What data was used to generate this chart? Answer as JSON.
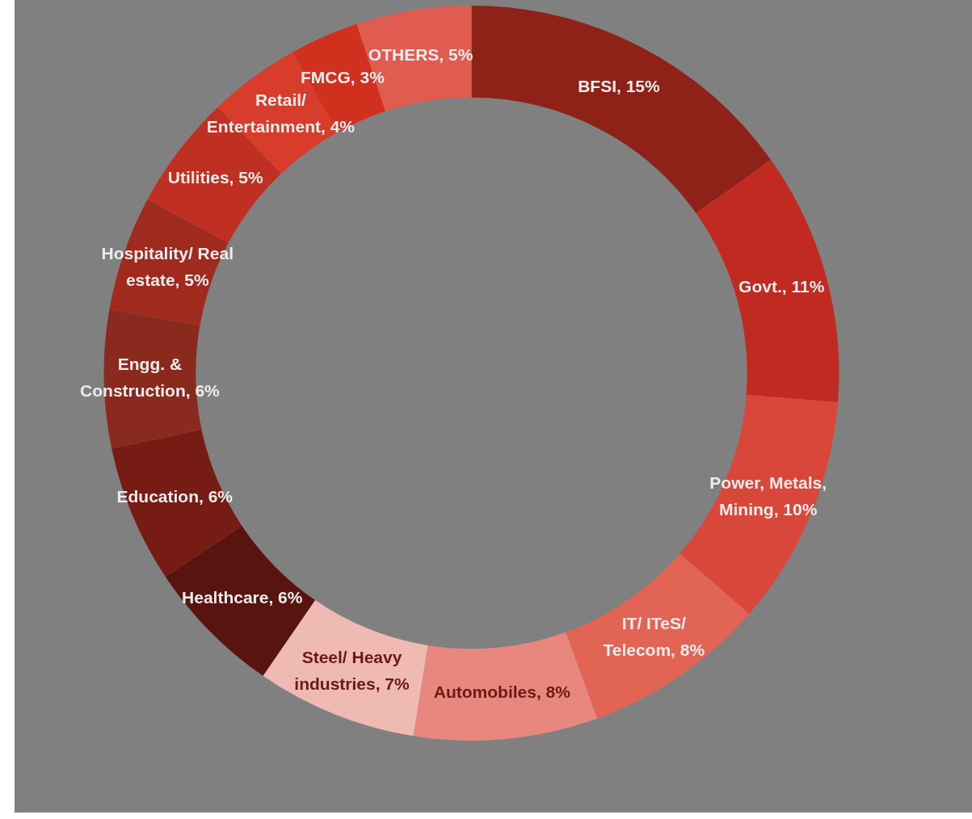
{
  "chart_data": {
    "type": "donut",
    "categories": [
      "BFSI",
      "Govt.",
      "Power, Metals, Mining",
      "IT/ ITeS/ Telecom",
      "Automobiles",
      "Steel/ Heavy industries",
      "Healthcare",
      "Education",
      "Engg. & Construction",
      "Hospitality/ Real estate",
      "Utilities",
      "Retail/ Entertainment",
      "FMCG",
      "OTHERS"
    ],
    "values": [
      15,
      11,
      10,
      8,
      8,
      7,
      6,
      6,
      6,
      5,
      5,
      4,
      3,
      5
    ],
    "colors": [
      "#8e2219",
      "#c02a20",
      "#d9473a",
      "#e26455",
      "#e8877e",
      "#efbab3",
      "#581510",
      "#761c14",
      "#8a2a1f",
      "#a12a1f",
      "#c03022",
      "#d83c2a",
      "#d2301f",
      "#e05c50"
    ],
    "value_labels": [
      "15%",
      "11%",
      "10%",
      "8%",
      "8%",
      "7%",
      "6%",
      "6%",
      "6%",
      "5%",
      "5%",
      "4%",
      "3%",
      "5%"
    ],
    "legend": false
  }
}
